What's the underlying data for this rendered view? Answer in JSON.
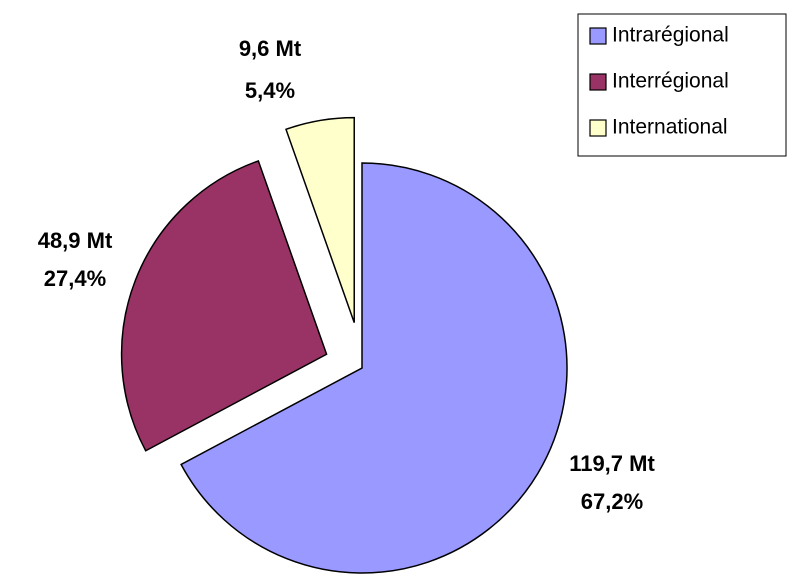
{
  "chart_data": {
    "type": "pie",
    "categories": [
      "Intrarégional",
      "Interrégional",
      "International"
    ],
    "values": [
      67.2,
      27.4,
      5.4
    ],
    "value_labels": [
      "67,2%",
      "27,4%",
      "5,4%"
    ],
    "masses": [
      119.7,
      48.9,
      9.6
    ],
    "mass_labels": [
      "119,7 Mt",
      "48,9 Mt",
      "9,6 Mt"
    ],
    "colors": [
      "#9999ff",
      "#993366",
      "#ffffcc"
    ],
    "legend": "top-right"
  }
}
